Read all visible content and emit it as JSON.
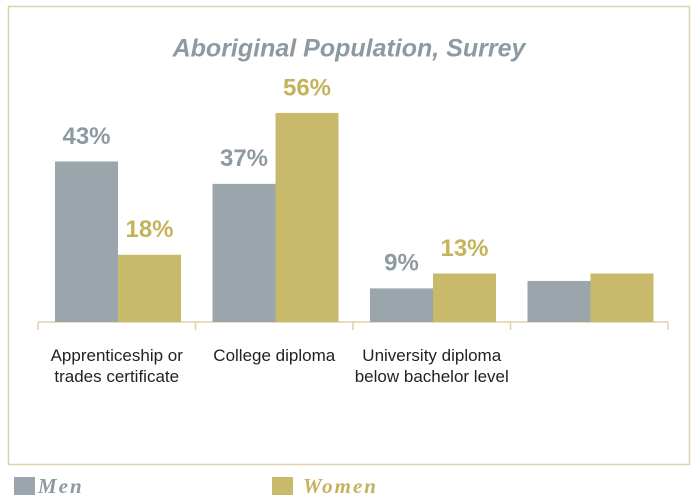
{
  "chart_data": {
    "type": "bar",
    "title": "Aboriginal Population, Surrey",
    "categories": [
      "Apprenticeship or trades certificate",
      "College diploma",
      "University diploma below bachelor level",
      null
    ],
    "series": [
      {
        "name": "Men",
        "color": "#9aa5ac",
        "values": [
          43,
          37,
          9,
          11
        ],
        "value_labels": [
          "43%",
          "37%",
          "9%",
          null
        ]
      },
      {
        "name": "Women",
        "color": "#c9b96a",
        "values": [
          18,
          56,
          13,
          13
        ],
        "value_labels": [
          "18%",
          "56%",
          "13%",
          null
        ]
      }
    ],
    "ylim": [
      0,
      60
    ],
    "legend": "bottom"
  }
}
